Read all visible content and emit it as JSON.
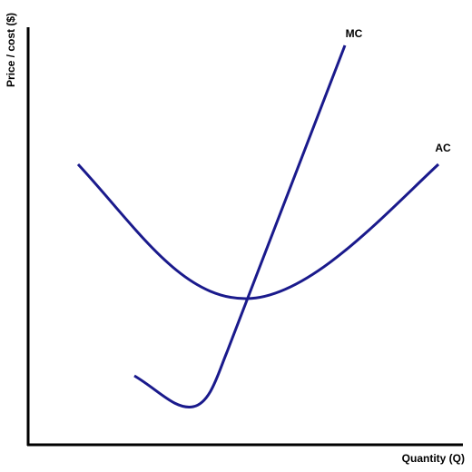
{
  "axes": {
    "y_label": "Price / cost ($)",
    "x_label": "Quantity (Q)"
  },
  "curves": [
    {
      "label": "MC"
    },
    {
      "label": "AC"
    }
  ]
}
